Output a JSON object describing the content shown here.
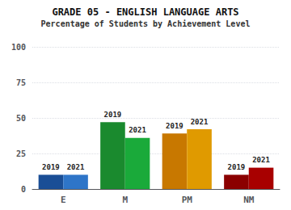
{
  "chart_data": {
    "type": "bar",
    "title": "GRADE 05 - ENGLISH LANGUAGE ARTS",
    "subtitle": "Percentage of Students by Achievement Level",
    "categories": [
      "E",
      "M",
      "PM",
      "NM"
    ],
    "series": [
      {
        "name": "2019",
        "values": [
          10,
          47,
          39,
          10
        ],
        "colors": [
          "#1a4e96",
          "#1a8a2e",
          "#c87800",
          "#8b0000"
        ]
      },
      {
        "name": "2021",
        "values": [
          10,
          36,
          42,
          15
        ],
        "colors": [
          "#2e75c8",
          "#1aaa3a",
          "#e09a00",
          "#a80000"
        ]
      }
    ],
    "ylim": [
      0,
      100
    ],
    "yticks": [
      0,
      25,
      50,
      75,
      100
    ],
    "grid": true
  }
}
